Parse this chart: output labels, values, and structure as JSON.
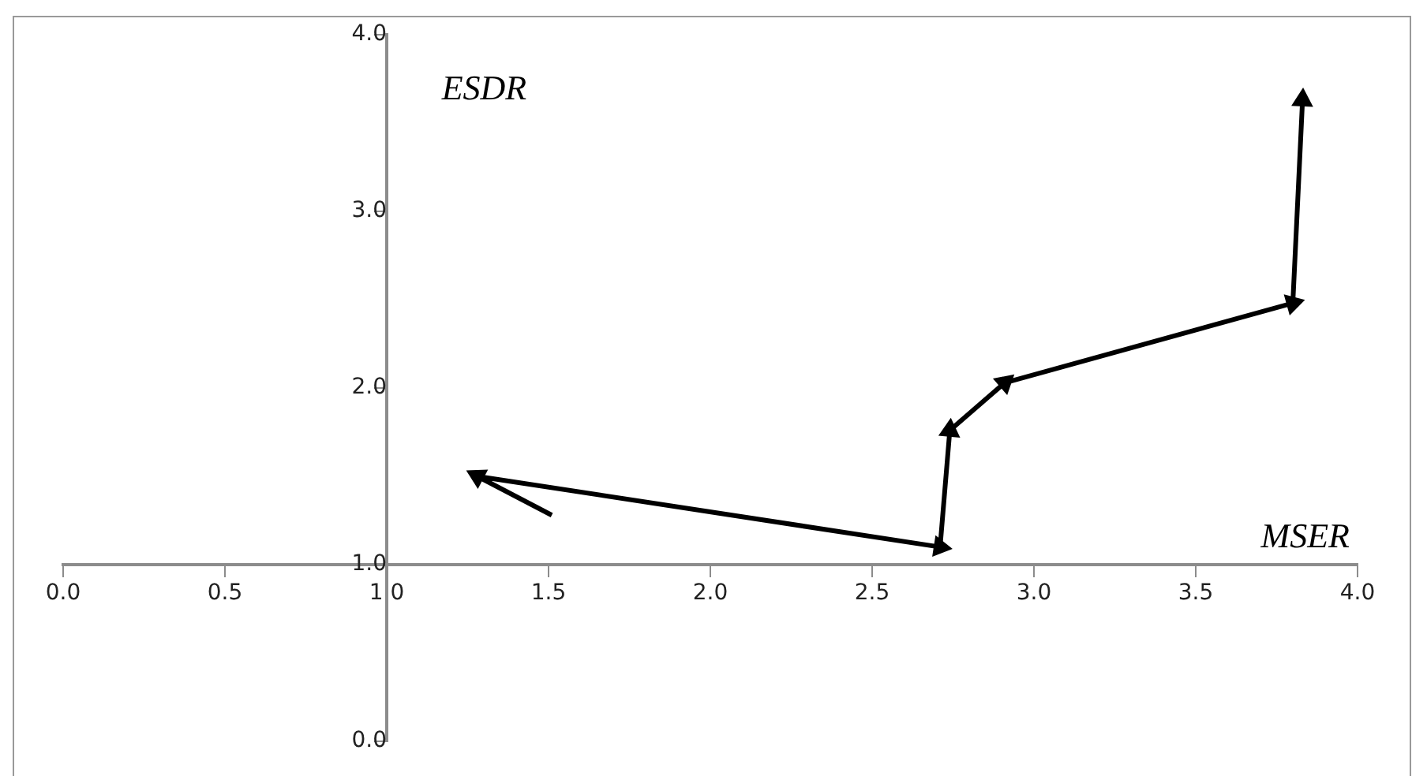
{
  "chart_data": {
    "type": "line",
    "xlabel": "MSER",
    "ylabel": "ESDR",
    "xlim": [
      0,
      4
    ],
    "ylim": [
      0,
      4
    ],
    "xticks": [
      {
        "value": 0,
        "label": "0.0"
      },
      {
        "value": 0.5,
        "label": "0.5"
      },
      {
        "value": 1,
        "label": "1.0"
      },
      {
        "value": 1.5,
        "label": "1.5"
      },
      {
        "value": 2,
        "label": "2.0"
      },
      {
        "value": 2.5,
        "label": "2.5"
      },
      {
        "value": 3,
        "label": "3.0"
      },
      {
        "value": 3.5,
        "label": "3.5"
      },
      {
        "value": 4,
        "label": "4.0"
      }
    ],
    "yticks": [
      {
        "value": 0,
        "label": "0.0"
      },
      {
        "value": 1,
        "label": "1.0"
      },
      {
        "value": 2,
        "label": "2.0"
      },
      {
        "value": 3,
        "label": "3.0"
      },
      {
        "value": 4,
        "label": "4.0"
      }
    ],
    "grid": false,
    "legend": false,
    "marker": "triangle",
    "series": [
      {
        "color": "#000000",
        "x": [
          1.51,
          1.28,
          2.71,
          2.74,
          2.91,
          3.8,
          3.83
        ],
        "values": [
          1.28,
          1.5,
          1.1,
          1.76,
          2.03,
          2.48,
          3.63
        ]
      }
    ]
  }
}
